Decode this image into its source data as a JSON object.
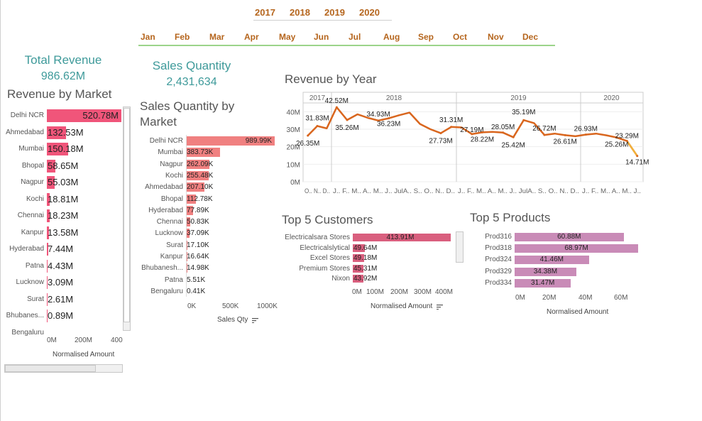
{
  "filters": {
    "years": [
      "2017",
      "2018",
      "2019",
      "2020"
    ],
    "months": [
      "Jan",
      "Feb",
      "Mar",
      "Apr",
      "May",
      "Jun",
      "Jul",
      "Aug",
      "Sep",
      "Oct",
      "Nov",
      "Dec"
    ],
    "accent_color": "#b5651d",
    "underline_color": "#9bd48a"
  },
  "kpis": {
    "total_revenue_label": "Total Revenue",
    "total_revenue_value": "986.62M",
    "sales_quantity_label": "Sales Quantity",
    "sales_quantity_value": "2,431,634"
  },
  "revenue_by_market": {
    "title": "Revenue by Market",
    "markets": [
      "Delhi NCR",
      "Ahmedabad",
      "Mumbai",
      "Bhopal",
      "Nagpur",
      "Kochi",
      "Chennai",
      "Kanpur",
      "Hyderabad",
      "Patna",
      "Lucknow",
      "Surat",
      "Bhubanes...",
      "Bengaluru"
    ],
    "values": [
      520.78,
      132.53,
      150.18,
      58.65,
      55.03,
      18.81,
      18.23,
      13.58,
      7.44,
      4.43,
      3.09,
      2.61,
      0.89,
      0.0
    ],
    "labels": [
      "520.78M",
      "132.53M",
      "150.18M",
      "58.65M",
      "55.03M",
      "18.81M",
      "18.23M",
      "13.58M",
      "7.44M",
      "4.43M",
      "3.09M",
      "2.61M",
      "0.89M",
      ""
    ],
    "ticks": [
      "0M",
      "200M",
      "400"
    ],
    "axis_title": "Normalised Amount",
    "color": "#f0557a"
  },
  "sales_qty_by_market": {
    "title": "Sales Quantity by Market",
    "markets": [
      "Delhi NCR",
      "Mumbai",
      "Nagpur",
      "Kochi",
      "Ahmedabad",
      "Bhopal",
      "Hyderabad",
      "Chennai",
      "Lucknow",
      "Surat",
      "Kanpur",
      "Bhubanesh...",
      "Patna",
      "Bengaluru"
    ],
    "values": [
      989.99,
      383.73,
      262.09,
      255.48,
      207.1,
      112.78,
      77.89,
      50.83,
      37.09,
      17.1,
      16.64,
      14.98,
      5.51,
      0.41
    ],
    "labels": [
      "989.99K",
      "383.73K",
      "262.09K",
      "255.48K",
      "207.10K",
      "112.78K",
      "77.89K",
      "50.83K",
      "37.09K",
      "17.10K",
      "16.64K",
      "14.98K",
      "5.51K",
      "0.41K"
    ],
    "ticks": [
      "0K",
      "500K",
      "1000K"
    ],
    "axis_title": "Sales Qty",
    "color": "#f08080"
  },
  "revenue_by_year": {
    "title": "Revenue by Year",
    "years": [
      "2017",
      "2018",
      "2019",
      "2020"
    ],
    "y_ticks": [
      "40M",
      "30M",
      "20M",
      "10M",
      "0M"
    ],
    "x_tick_text": [
      "O.. N.. D..",
      "J.. F.. M.. A.. M.. J.. JulA.. S.. O.. N.. D..",
      "J.. F.. M.. A.. M.. J.. JulA.. S.. O.. N.. D..",
      "J.. F.. M.. A.. M.. J.."
    ],
    "color": "#d9661e",
    "end_color": "#f2b13a"
  },
  "chart_data": {
    "type": "line",
    "title": "Revenue by Year",
    "ylim": [
      0,
      45
    ],
    "unit": "M",
    "x": [
      "2017-10",
      "2017-11",
      "2017-12",
      "2018-01",
      "2018-02",
      "2018-03",
      "2018-04",
      "2018-05",
      "2018-06",
      "2018-07",
      "2018-08",
      "2018-09",
      "2018-10",
      "2018-11",
      "2018-12",
      "2019-01",
      "2019-02",
      "2019-03",
      "2019-04",
      "2019-05",
      "2019-06",
      "2019-07",
      "2019-08",
      "2019-09",
      "2019-10",
      "2019-11",
      "2019-12",
      "2020-01",
      "2020-02",
      "2020-03",
      "2020-04",
      "2020-05",
      "2020-06"
    ],
    "values": [
      26.35,
      31.83,
      30.5,
      42.52,
      35.26,
      38.5,
      36.5,
      34.93,
      36.23,
      38.0,
      39.5,
      33.0,
      30.0,
      27.73,
      31.31,
      31.0,
      27.19,
      28.22,
      28.5,
      28.05,
      25.42,
      35.19,
      33.5,
      26.72,
      27.5,
      26.61,
      26.0,
      26.93,
      27.5,
      26.5,
      25.26,
      23.29,
      14.71
    ],
    "labels": [
      "26.35M",
      "31.83M",
      "",
      "42.52M",
      "35.26M",
      "",
      "",
      "34.93M",
      "36.23M",
      "",
      "",
      "",
      "",
      "27.73M",
      "31.31M",
      "",
      "27.19M",
      "28.22M",
      "",
      "28.05M",
      "25.42M",
      "35.19M",
      "",
      "26.72M",
      "",
      "26.61M",
      "",
      "26.93M",
      "",
      "",
      "25.26M",
      "23.29M",
      "14.71M"
    ],
    "grid": true
  },
  "top_customers": {
    "title": "Top 5 Customers",
    "names": [
      "Electricalsara Stores",
      "Electricalslytical",
      "Excel Stores",
      "Premium Stores",
      "Nixon"
    ],
    "values": [
      413.91,
      49.64,
      49.18,
      45.31,
      43.92
    ],
    "labels": [
      "413.91M",
      "49.64M",
      "49.18M",
      "45.31M",
      "43.92M"
    ],
    "ticks": [
      "0M",
      "100M",
      "200M",
      "300M",
      "400M"
    ],
    "axis_title": "Normalised Amount",
    "color": "#d95f7e"
  },
  "top_products": {
    "title": "Top 5 Products",
    "names": [
      "Prod316",
      "Prod318",
      "Prod324",
      "Prod329",
      "Prod334"
    ],
    "values": [
      60.88,
      68.97,
      41.46,
      34.38,
      31.47
    ],
    "labels": [
      "60.88M",
      "68.97M",
      "41.46M",
      "34.38M",
      "31.47M"
    ],
    "ticks": [
      "0M",
      "20M",
      "40M",
      "60M"
    ],
    "axis_title": "Normalised Amount",
    "color": "#c98bb7"
  }
}
